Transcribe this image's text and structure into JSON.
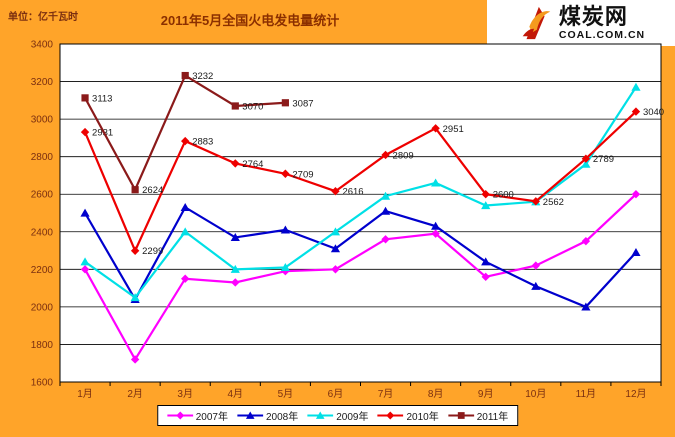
{
  "header": {
    "unit": "单位：亿千瓦时",
    "title": "2011年5月全国火电发电量统计"
  },
  "logo": {
    "name": "煤炭网",
    "domain": "COAL.COM.CN"
  },
  "colors": {
    "background": "#FFA429",
    "plot_background": "#FFFFFF",
    "axis_text": "#7B2F10",
    "title_text": "#8B2F00",
    "data_label_text": "#1A1A1A",
    "grid_line": "#000000"
  },
  "chart_data": {
    "type": "line",
    "title": "2011年5月全国火电发电量统计",
    "unit_label": "单位：亿千瓦时",
    "categories": [
      "1月",
      "2月",
      "3月",
      "4月",
      "5月",
      "6月",
      "7月",
      "8月",
      "9月",
      "10月",
      "11月",
      "12月"
    ],
    "ylim": [
      1600,
      3400
    ],
    "ytick_step": 200,
    "grid": true,
    "legend_position": "bottom",
    "series": [
      {
        "name": "2007年",
        "color": "#FF00FF",
        "marker": "diamond",
        "show_labels": false,
        "values": [
          2200,
          1720,
          2150,
          2130,
          2190,
          2200,
          2360,
          2390,
          2160,
          2220,
          2350,
          2600
        ]
      },
      {
        "name": "2008年",
        "color": "#0000CD",
        "marker": "triangle",
        "show_labels": false,
        "values": [
          2500,
          2040,
          2530,
          2370,
          2410,
          2310,
          2510,
          2430,
          2240,
          2110,
          2000,
          2290
        ]
      },
      {
        "name": "2009年",
        "color": "#00E0E6",
        "marker": "triangle",
        "show_labels": false,
        "values": [
          2240,
          2050,
          2400,
          2200,
          2210,
          2400,
          2590,
          2660,
          2540,
          2560,
          2760,
          3170
        ]
      },
      {
        "name": "2010年",
        "color": "#EE0000",
        "marker": "diamond",
        "show_labels": true,
        "values": [
          2931,
          2299,
          2883,
          2764,
          2709,
          2616,
          2809,
          2951,
          2600,
          2562,
          2789,
          3040
        ]
      },
      {
        "name": "2011年",
        "color": "#8B1A1A",
        "marker": "square",
        "show_labels": true,
        "values": [
          3113,
          2624,
          3232,
          3070,
          3087
        ]
      }
    ]
  }
}
